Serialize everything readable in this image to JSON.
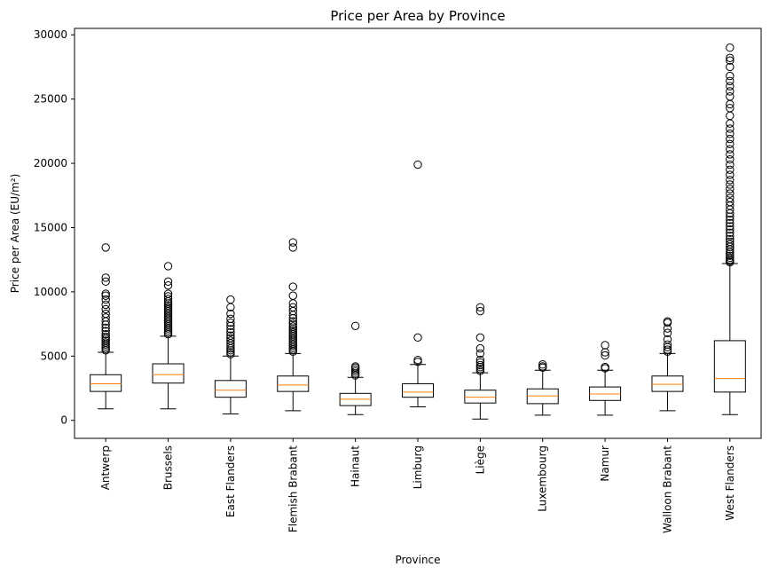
{
  "chart_data": {
    "type": "box",
    "title": "Price per Area by Province",
    "xlabel": "Province",
    "ylabel": "Price per Area (EU/m²)",
    "ylim": [
      -1400,
      30500
    ],
    "yticks": [
      0,
      5000,
      10000,
      15000,
      20000,
      25000,
      30000
    ],
    "grid": false,
    "colors": {
      "box": "#000000",
      "median": "#ff7f0e",
      "flier": "#000000"
    },
    "categories": [
      "Antwerp",
      "Brussels",
      "East Flanders",
      "Flemish Brabant",
      "Hainaut",
      "Limburg",
      "Liège",
      "Luxembourg",
      "Namur",
      "Walloon Brabant",
      "West Flanders"
    ],
    "boxes": [
      {
        "name": "Antwerp",
        "whislo": 900,
        "q1": 2250,
        "med": 2850,
        "q3": 3550,
        "whishi": 5300,
        "fliers": [
          5450,
          5600,
          5750,
          5900,
          6050,
          6200,
          6350,
          6500,
          6700,
          6950,
          7200,
          7450,
          7700,
          8000,
          8300,
          8650,
          9000,
          9400,
          9700,
          9850,
          10800,
          11100,
          13450
        ]
      },
      {
        "name": "Brussels",
        "whislo": 900,
        "q1": 2900,
        "med": 3550,
        "q3": 4400,
        "whishi": 6550,
        "fliers": [
          6700,
          6850,
          7000,
          7150,
          7300,
          7450,
          7600,
          7750,
          7900,
          8050,
          8200,
          8350,
          8500,
          8650,
          8800,
          8950,
          9100,
          9250,
          9450,
          9650,
          9850,
          10500,
          10800,
          12000
        ]
      },
      {
        "name": "East Flanders",
        "whislo": 500,
        "q1": 1800,
        "med": 2350,
        "q3": 3100,
        "whishi": 5000,
        "fliers": [
          5150,
          5300,
          5450,
          5600,
          5800,
          6000,
          6200,
          6400,
          6600,
          6850,
          7100,
          7350,
          7600,
          7900,
          8300,
          8800,
          9400
        ]
      },
      {
        "name": "Flemish Brabant",
        "whislo": 750,
        "q1": 2250,
        "med": 2750,
        "q3": 3450,
        "whishi": 5200,
        "fliers": [
          5350,
          5500,
          5650,
          5800,
          5950,
          6100,
          6250,
          6400,
          6550,
          6700,
          6850,
          7000,
          7150,
          7300,
          7500,
          7700,
          7950,
          8200,
          8500,
          8800,
          9100,
          9700,
          10400,
          13450,
          13850
        ]
      },
      {
        "name": "Hainaut",
        "whislo": 450,
        "q1": 1150,
        "med": 1650,
        "q3": 2100,
        "whishi": 3350,
        "fliers": [
          3500,
          3650,
          3800,
          3950,
          4100,
          4200,
          7350
        ]
      },
      {
        "name": "Limburg",
        "whislo": 1050,
        "q1": 1800,
        "med": 2200,
        "q3": 2850,
        "whishi": 4350,
        "fliers": [
          4550,
          4700,
          6450,
          19900
        ]
      },
      {
        "name": "Liège",
        "whislo": 100,
        "q1": 1350,
        "med": 1800,
        "q3": 2350,
        "whishi": 3700,
        "fliers": [
          3850,
          4000,
          4150,
          4300,
          4500,
          4700,
          5200,
          5600,
          6450,
          8500,
          8800
        ]
      },
      {
        "name": "Luxembourg",
        "whislo": 400,
        "q1": 1300,
        "med": 1900,
        "q3": 2450,
        "whishi": 3900,
        "fliers": [
          4100,
          4200,
          4350
        ]
      },
      {
        "name": "Namur",
        "whislo": 400,
        "q1": 1550,
        "med": 2050,
        "q3": 2600,
        "whishi": 3900,
        "fliers": [
          4050,
          4150,
          5050,
          5300,
          5850
        ]
      },
      {
        "name": "Walloon Brabant",
        "whislo": 750,
        "q1": 2250,
        "med": 2800,
        "q3": 3450,
        "whishi": 5200,
        "fliers": [
          5350,
          5500,
          5700,
          5900,
          6300,
          6800,
          7150,
          7600,
          7700
        ]
      },
      {
        "name": "West Flanders",
        "whislo": 450,
        "q1": 2200,
        "med": 3250,
        "q3": 6200,
        "whishi": 12200,
        "fliers": [
          12300,
          12400,
          12500,
          12650,
          12800,
          12950,
          13100,
          13300,
          13500,
          13700,
          13900,
          14100,
          14350,
          14600,
          14850,
          15100,
          15350,
          15600,
          15850,
          16100,
          16400,
          16700,
          17000,
          17300,
          17650,
          18000,
          18350,
          18700,
          19100,
          19500,
          19900,
          20300,
          20700,
          21100,
          21500,
          21900,
          22300,
          22700,
          23100,
          23700,
          24300,
          24600,
          25200,
          25600,
          26000,
          26400,
          26800,
          27500,
          28000,
          28200,
          29000
        ]
      }
    ]
  }
}
